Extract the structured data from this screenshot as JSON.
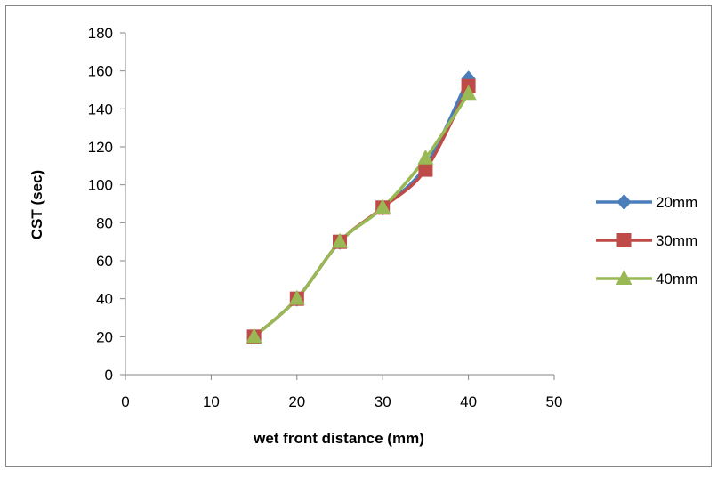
{
  "chart_data": {
    "type": "scatter",
    "title": "",
    "xlabel": "wet front distance (mm)",
    "ylabel": "CST (sec)",
    "xlim": [
      0,
      50
    ],
    "ylim": [
      0,
      180
    ],
    "x_ticks": [
      0,
      10,
      20,
      30,
      40,
      50
    ],
    "y_ticks": [
      0,
      20,
      40,
      60,
      80,
      100,
      120,
      140,
      160,
      180
    ],
    "grid": false,
    "legend_position": "right",
    "smooth_lines": true,
    "series": [
      {
        "name": "20mm",
        "color": "#4a7ebb",
        "marker": "diamond",
        "x": [
          15,
          20,
          25,
          30,
          35,
          40
        ],
        "y": [
          20,
          40,
          70,
          88,
          110,
          156
        ]
      },
      {
        "name": "30mm",
        "color": "#be4b48",
        "marker": "square",
        "x": [
          15,
          20,
          25,
          30,
          35,
          40
        ],
        "y": [
          20,
          40,
          70,
          88,
          108,
          152
        ]
      },
      {
        "name": "40mm",
        "color": "#98b954",
        "marker": "triangle",
        "x": [
          15,
          20,
          25,
          30,
          35,
          40
        ],
        "y": [
          20,
          40,
          70,
          88,
          114,
          148
        ]
      }
    ]
  }
}
